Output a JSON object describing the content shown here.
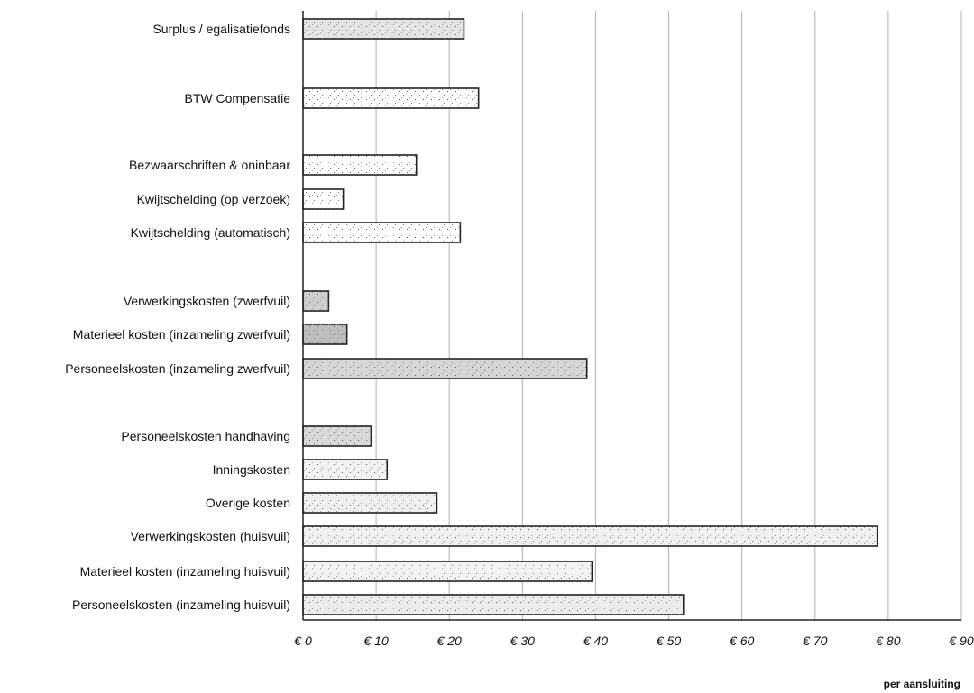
{
  "chart_data": {
    "type": "bar",
    "orientation": "horizontal",
    "title": "",
    "xlabel": "per aansluiting",
    "ylabel": "",
    "xlim": [
      0,
      90
    ],
    "grid": true,
    "legend": "none",
    "x_ticks": [
      "€ 0",
      "€ 10",
      "€ 20",
      "€ 30",
      "€ 40",
      "€ 50",
      "€ 60",
      "€ 70",
      "€ 80",
      "€ 90"
    ],
    "categories": [
      {
        "label": "Surplus / egalisatiefonds",
        "value": 22,
        "fill": "#e4e4e4"
      },
      {
        "label": "BTW Compensatie",
        "value": 24,
        "fill": "#ffffff"
      },
      {
        "label": "Bezwaarschriften & oninbaar",
        "value": 15.5,
        "fill": "#ffffff"
      },
      {
        "label": "Kwijtschelding (op verzoek)",
        "value": 5.5,
        "fill": "#ffffff"
      },
      {
        "label": "Kwijtschelding (automatisch)",
        "value": 21.5,
        "fill": "#ffffff"
      },
      {
        "label": "Verwerkingskosten (zwerfvuil)",
        "value": 3.5,
        "fill": "#cfcfcf"
      },
      {
        "label": "Materieel kosten (inzameling zwerfvuil)",
        "value": 6,
        "fill": "#bdbdbd"
      },
      {
        "label": "Personeelskosten (inzameling zwerfvuil)",
        "value": 38.8,
        "fill": "#d6d6d6"
      },
      {
        "label": "Personeelskosten handhaving",
        "value": 9.3,
        "fill": "#d9d9d9"
      },
      {
        "label": "Inningskosten",
        "value": 11.5,
        "fill": "#f2f2f2"
      },
      {
        "label": "Overige kosten",
        "value": 18.3,
        "fill": "#f0f0f0"
      },
      {
        "label": "Verwerkingskosten (huisvuil)",
        "value": 78.5,
        "fill": "#f0f0f0"
      },
      {
        "label": "Materieel kosten (inzameling huisvuil)",
        "value": 39.5,
        "fill": "#f3f3f3"
      },
      {
        "label": "Personeelskosten (inzameling huisvuil)",
        "value": 52,
        "fill": "#ececec"
      }
    ]
  }
}
